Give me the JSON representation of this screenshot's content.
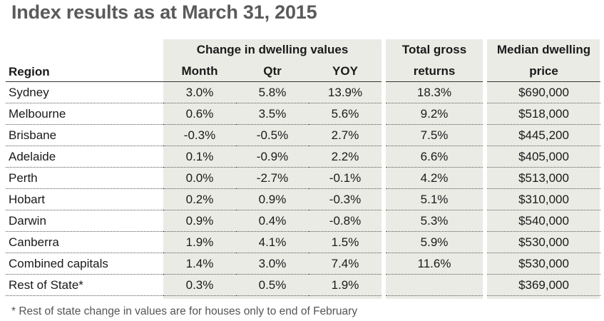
{
  "title": "Index results as at March 31, 2015",
  "headers": {
    "region": "Region",
    "change_group": "Change in dwelling values",
    "month": "Month",
    "qtr": "Qtr",
    "yoy": "YOY",
    "gross_line1": "Total gross",
    "gross_line2": "returns",
    "median_line1": "Median dwelling",
    "median_line2": "price"
  },
  "rows": [
    {
      "region": "Sydney",
      "month": "3.0%",
      "qtr": "5.8%",
      "yoy": "13.9%",
      "gross": "18.3%",
      "median": "$690,000"
    },
    {
      "region": "Melbourne",
      "month": "0.6%",
      "qtr": "3.5%",
      "yoy": "5.6%",
      "gross": "9.2%",
      "median": "$518,000"
    },
    {
      "region": "Brisbane",
      "month": "-0.3%",
      "qtr": "-0.5%",
      "yoy": "2.7%",
      "gross": "7.5%",
      "median": "$445,200"
    },
    {
      "region": "Adelaide",
      "month": "0.1%",
      "qtr": "-0.9%",
      "yoy": "2.2%",
      "gross": "6.6%",
      "median": "$405,000"
    },
    {
      "region": "Perth",
      "month": "0.0%",
      "qtr": "-2.7%",
      "yoy": "-0.1%",
      "gross": "4.2%",
      "median": "$513,000"
    },
    {
      "region": "Hobart",
      "month": "0.2%",
      "qtr": "0.9%",
      "yoy": "-0.3%",
      "gross": "5.1%",
      "median": "$310,000"
    },
    {
      "region": "Darwin",
      "month": "0.9%",
      "qtr": "0.4%",
      "yoy": "-0.8%",
      "gross": "5.3%",
      "median": "$540,000"
    },
    {
      "region": "Canberra",
      "month": "1.9%",
      "qtr": "4.1%",
      "yoy": "1.5%",
      "gross": "5.9%",
      "median": "$530,000"
    },
    {
      "region": "Combined capitals",
      "month": "1.4%",
      "qtr": "3.0%",
      "yoy": "7.4%",
      "gross": "11.6%",
      "median": "$530,000"
    },
    {
      "region": "Rest of State*",
      "month": "0.3%",
      "qtr": "0.5%",
      "yoy": "1.9%",
      "gross": "",
      "median": "$369,000"
    }
  ],
  "footnote": "* Rest of state change in values are for houses only to end of February",
  "colors": {
    "title": "#5a5a5a",
    "band": "#ebebe6",
    "text": "#1a1a1a"
  }
}
